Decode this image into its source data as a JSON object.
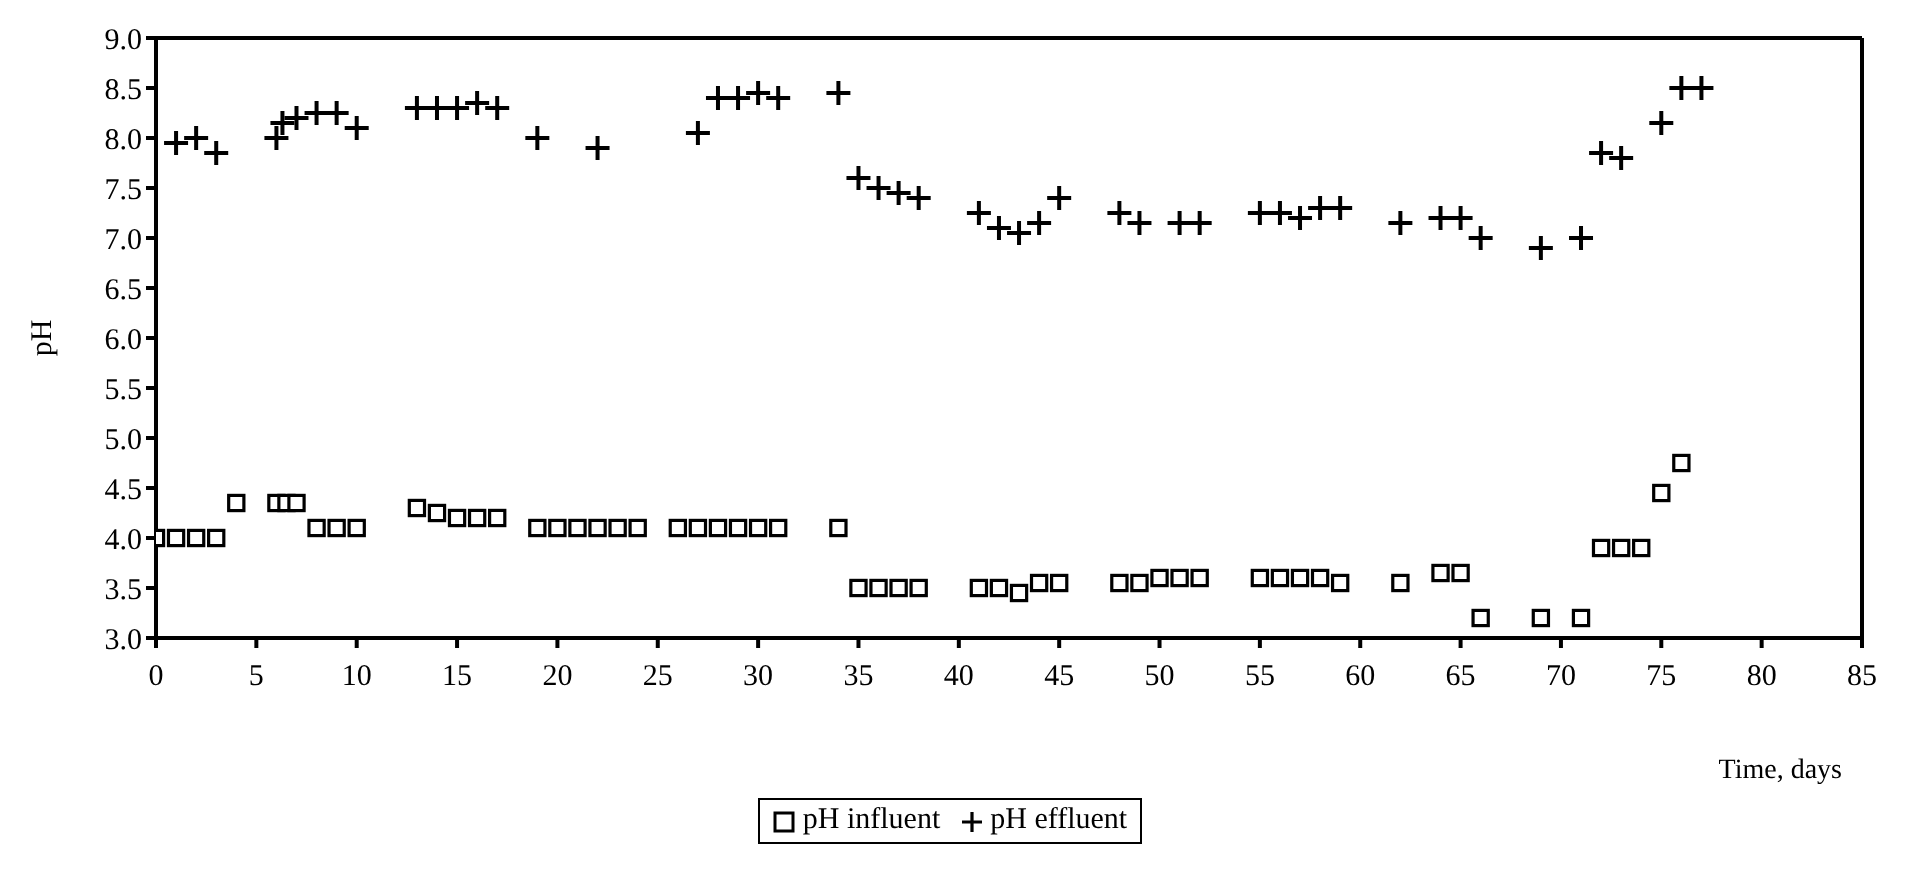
{
  "chart_data": {
    "type": "scatter",
    "ylabel": "pH",
    "xlabel": "Time, days",
    "xlim": [
      0,
      85
    ],
    "xticks": [
      0,
      5,
      10,
      15,
      20,
      25,
      30,
      35,
      40,
      45,
      50,
      55,
      60,
      65,
      70,
      75,
      80,
      85
    ],
    "ylim": [
      3,
      9
    ],
    "yticks": [
      {
        "value": 3,
        "label": "3.0"
      },
      {
        "value": 3.5,
        "label": "3.5"
      },
      {
        "value": 4,
        "label": "4.0"
      },
      {
        "value": 4.5,
        "label": "4.5"
      },
      {
        "value": 5,
        "label": "5.0"
      },
      {
        "value": 5.5,
        "label": "5.5"
      },
      {
        "value": 6,
        "label": "6.0"
      },
      {
        "value": 6.5,
        "label": "6.5"
      },
      {
        "value": 7,
        "label": "7.0"
      },
      {
        "value": 7.5,
        "label": "7.5"
      },
      {
        "value": 8,
        "label": "8.0"
      },
      {
        "value": 8.5,
        "label": "8.5"
      },
      {
        "value": 9,
        "label": "9.0"
      }
    ],
    "legend": "bottom",
    "series": [
      {
        "name": "pH influent",
        "color": "#000000",
        "marker": "square",
        "x": [
          0,
          1,
          2,
          3,
          4,
          6,
          6.5,
          7,
          8,
          9,
          10,
          13,
          14,
          15,
          16,
          17,
          19,
          20,
          21,
          22,
          23,
          24,
          26,
          27,
          28,
          29,
          30,
          31,
          34,
          35,
          36,
          37,
          38,
          41,
          42,
          43,
          44,
          45,
          48,
          49,
          50,
          51,
          52,
          55,
          56,
          57,
          58,
          59,
          62,
          64,
          65,
          66,
          69,
          71,
          72,
          73,
          74,
          75,
          76
        ],
        "values": [
          4.0,
          4.0,
          4.0,
          4.0,
          4.35,
          4.35,
          4.35,
          4.35,
          4.1,
          4.1,
          4.1,
          4.3,
          4.25,
          4.2,
          4.2,
          4.2,
          4.1,
          4.1,
          4.1,
          4.1,
          4.1,
          4.1,
          4.1,
          4.1,
          4.1,
          4.1,
          4.1,
          4.1,
          4.1,
          3.5,
          3.5,
          3.5,
          3.5,
          3.5,
          3.5,
          3.45,
          3.55,
          3.55,
          3.55,
          3.55,
          3.6,
          3.6,
          3.6,
          3.6,
          3.6,
          3.6,
          3.6,
          3.55,
          3.55,
          3.65,
          3.65,
          3.2,
          3.2,
          3.2,
          3.9,
          3.9,
          3.9,
          4.45,
          4.75
        ]
      },
      {
        "name": "pH effluent",
        "color": "#000000",
        "marker": "cross",
        "x": [
          1,
          2,
          3,
          6,
          6.3,
          7,
          8,
          9,
          10,
          13,
          14,
          15,
          16,
          17,
          19,
          22,
          27,
          28,
          29,
          30,
          31,
          34,
          35,
          36,
          37,
          38,
          41,
          42,
          43,
          44,
          45,
          48,
          49,
          51,
          52,
          55,
          56,
          57,
          58,
          59,
          62,
          64,
          65,
          66,
          69,
          71,
          72,
          73,
          75,
          76,
          77
        ],
        "values": [
          7.95,
          8.0,
          7.85,
          8.0,
          8.15,
          8.2,
          8.25,
          8.25,
          8.1,
          8.3,
          8.3,
          8.3,
          8.35,
          8.3,
          8.0,
          7.9,
          8.05,
          8.4,
          8.4,
          8.45,
          8.4,
          8.45,
          7.6,
          7.5,
          7.45,
          7.4,
          7.25,
          7.1,
          7.05,
          7.15,
          7.4,
          7.25,
          7.15,
          7.15,
          7.15,
          7.25,
          7.25,
          7.2,
          7.3,
          7.3,
          7.15,
          7.2,
          7.2,
          7.0,
          6.9,
          7.0,
          7.85,
          7.8,
          8.15,
          8.5,
          8.5
        ]
      }
    ]
  }
}
